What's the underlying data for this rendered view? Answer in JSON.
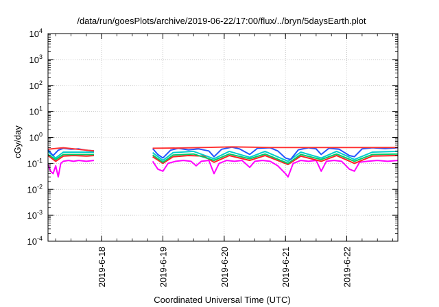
{
  "chart_data": {
    "type": "line",
    "title": "/data/run/goesPlots/archive/2019-06-22/17:00/flux/../bryn/5daysEarth.plot",
    "xlabel": "Coordinated Universal Time (UTC)",
    "ylabel": "cGy/day",
    "yscale": "log",
    "ylim": [
      0.0001,
      10000
    ],
    "y_ticks": [
      {
        "value": 0.0001,
        "base": "10",
        "exp": "-4"
      },
      {
        "value": 0.001,
        "base": "10",
        "exp": "-3"
      },
      {
        "value": 0.01,
        "base": "10",
        "exp": "-2"
      },
      {
        "value": 0.1,
        "base": "10",
        "exp": "-1"
      },
      {
        "value": 1,
        "base": "10",
        "exp": "0"
      },
      {
        "value": 10,
        "base": "10",
        "exp": "1"
      },
      {
        "value": 100,
        "base": "10",
        "exp": "2"
      },
      {
        "value": 1000,
        "base": "10",
        "exp": "3"
      },
      {
        "value": 10000,
        "base": "10",
        "exp": "4"
      }
    ],
    "xlim": [
      "2019-06-17 03:00",
      "2019-06-22 20:00"
    ],
    "x_ticks": [
      {
        "value": "2019-06-18 00:00",
        "label": "2019-6-18"
      },
      {
        "value": "2019-06-19 00:00",
        "label": "2019-6-19"
      },
      {
        "value": "2019-06-20 00:00",
        "label": "2019-6-20"
      },
      {
        "value": "2019-06-21 00:00",
        "label": "2019-6-21"
      },
      {
        "value": "2019-06-22 00:00",
        "label": "2019-6-22"
      }
    ],
    "grid": true,
    "gap": [
      "2019-06-17 21:00",
      "2019-06-18 20:00"
    ],
    "series": [
      {
        "color": "#ff00ff",
        "values_before_gap": [
          [
            "2019-06-17 03:00",
            0.09
          ],
          [
            "2019-06-17 04:00",
            0.05
          ],
          [
            "2019-06-17 05:00",
            0.04
          ],
          [
            "2019-06-17 06:00",
            0.08
          ],
          [
            "2019-06-17 07:00",
            0.03
          ],
          [
            "2019-06-17 08:00",
            0.1
          ],
          [
            "2019-06-17 09:00",
            0.12
          ],
          [
            "2019-06-17 11:00",
            0.13
          ],
          [
            "2019-06-17 13:00",
            0.12
          ],
          [
            "2019-06-17 15:00",
            0.13
          ],
          [
            "2019-06-17 18:00",
            0.12
          ],
          [
            "2019-06-17 21:00",
            0.13
          ]
        ],
        "values_after_gap": [
          [
            "2019-06-18 20:00",
            0.12
          ],
          [
            "2019-06-18 22:00",
            0.06
          ],
          [
            "2019-06-19 00:00",
            0.05
          ],
          [
            "2019-06-19 02:00",
            0.1
          ],
          [
            "2019-06-19 05:00",
            0.12
          ],
          [
            "2019-06-19 08:00",
            0.13
          ],
          [
            "2019-06-19 11:00",
            0.12
          ],
          [
            "2019-06-19 13:00",
            0.08
          ],
          [
            "2019-06-19 15:00",
            0.12
          ],
          [
            "2019-06-19 18:00",
            0.13
          ],
          [
            "2019-06-19 20:00",
            0.04
          ],
          [
            "2019-06-19 22:00",
            0.1
          ],
          [
            "2019-06-20 01:00",
            0.13
          ],
          [
            "2019-06-20 04:00",
            0.12
          ],
          [
            "2019-06-20 07:00",
            0.13
          ],
          [
            "2019-06-20 10:00",
            0.07
          ],
          [
            "2019-06-20 12:00",
            0.12
          ],
          [
            "2019-06-20 15:00",
            0.13
          ],
          [
            "2019-06-20 18:00",
            0.12
          ],
          [
            "2019-06-20 21:00",
            0.08
          ],
          [
            "2019-06-21 00:00",
            0.04
          ],
          [
            "2019-06-21 01:00",
            0.03
          ],
          [
            "2019-06-21 03:00",
            0.1
          ],
          [
            "2019-06-21 06:00",
            0.13
          ],
          [
            "2019-06-21 09:00",
            0.12
          ],
          [
            "2019-06-21 12:00",
            0.13
          ],
          [
            "2019-06-21 14:00",
            0.05
          ],
          [
            "2019-06-21 16:00",
            0.12
          ],
          [
            "2019-06-21 19:00",
            0.13
          ],
          [
            "2019-06-21 22:00",
            0.12
          ],
          [
            "2019-06-22 01:00",
            0.06
          ],
          [
            "2019-06-22 03:00",
            0.05
          ],
          [
            "2019-06-22 05:00",
            0.11
          ],
          [
            "2019-06-22 08:00",
            0.12
          ],
          [
            "2019-06-22 12:00",
            0.13
          ],
          [
            "2019-06-22 16:00",
            0.12
          ],
          [
            "2019-06-22 20:00",
            0.13
          ]
        ]
      },
      {
        "color": "#ff2222",
        "values_before_gap": [
          [
            "2019-06-17 03:00",
            0.2
          ],
          [
            "2019-06-17 06:00",
            0.12
          ],
          [
            "2019-06-17 09:00",
            0.19
          ],
          [
            "2019-06-17 13:00",
            0.2
          ],
          [
            "2019-06-17 18:00",
            0.19
          ],
          [
            "2019-06-17 21:00",
            0.2
          ]
        ],
        "values_after_gap": [
          [
            "2019-06-18 20:00",
            0.18
          ],
          [
            "2019-06-19 00:00",
            0.1
          ],
          [
            "2019-06-19 04:00",
            0.18
          ],
          [
            "2019-06-19 10:00",
            0.2
          ],
          [
            "2019-06-19 16:00",
            0.19
          ],
          [
            "2019-06-19 20:00",
            0.11
          ],
          [
            "2019-06-20 02:00",
            0.2
          ],
          [
            "2019-06-20 10:00",
            0.13
          ],
          [
            "2019-06-20 16:00",
            0.2
          ],
          [
            "2019-06-21 01:00",
            0.09
          ],
          [
            "2019-06-21 06:00",
            0.19
          ],
          [
            "2019-06-21 14:00",
            0.12
          ],
          [
            "2019-06-21 20:00",
            0.2
          ],
          [
            "2019-06-22 03:00",
            0.1
          ],
          [
            "2019-06-22 10:00",
            0.19
          ],
          [
            "2019-06-22 20:00",
            0.2
          ]
        ]
      },
      {
        "color": "#00cc66",
        "values_before_gap": [
          [
            "2019-06-17 03:00",
            0.22
          ],
          [
            "2019-06-17 06:00",
            0.14
          ],
          [
            "2019-06-17 09:00",
            0.22
          ],
          [
            "2019-06-17 21:00",
            0.22
          ]
        ],
        "values_after_gap": [
          [
            "2019-06-18 20:00",
            0.21
          ],
          [
            "2019-06-19 00:00",
            0.11
          ],
          [
            "2019-06-19 04:00",
            0.21
          ],
          [
            "2019-06-19 12:00",
            0.23
          ],
          [
            "2019-06-19 20:00",
            0.13
          ],
          [
            "2019-06-20 02:00",
            0.23
          ],
          [
            "2019-06-20 10:00",
            0.15
          ],
          [
            "2019-06-20 16:00",
            0.23
          ],
          [
            "2019-06-21 01:00",
            0.1
          ],
          [
            "2019-06-21 06:00",
            0.22
          ],
          [
            "2019-06-21 14:00",
            0.14
          ],
          [
            "2019-06-21 20:00",
            0.23
          ],
          [
            "2019-06-22 03:00",
            0.12
          ],
          [
            "2019-06-22 10:00",
            0.22
          ],
          [
            "2019-06-22 20:00",
            0.23
          ]
        ]
      },
      {
        "color": "#00cccc",
        "values_before_gap": [
          [
            "2019-06-17 03:00",
            0.28
          ],
          [
            "2019-06-17 06:00",
            0.16
          ],
          [
            "2019-06-17 09:00",
            0.27
          ],
          [
            "2019-06-17 21:00",
            0.27
          ]
        ],
        "values_after_gap": [
          [
            "2019-06-18 20:00",
            0.26
          ],
          [
            "2019-06-19 00:00",
            0.13
          ],
          [
            "2019-06-19 04:00",
            0.26
          ],
          [
            "2019-06-19 12:00",
            0.29
          ],
          [
            "2019-06-19 20:00",
            0.15
          ],
          [
            "2019-06-20 02:00",
            0.29
          ],
          [
            "2019-06-20 10:00",
            0.17
          ],
          [
            "2019-06-20 16:00",
            0.29
          ],
          [
            "2019-06-21 01:00",
            0.12
          ],
          [
            "2019-06-21 06:00",
            0.27
          ],
          [
            "2019-06-21 14:00",
            0.16
          ],
          [
            "2019-06-21 20:00",
            0.29
          ],
          [
            "2019-06-22 03:00",
            0.14
          ],
          [
            "2019-06-22 10:00",
            0.27
          ],
          [
            "2019-06-22 20:00",
            0.29
          ]
        ]
      },
      {
        "color": "#2255ff",
        "values_before_gap": [
          [
            "2019-06-17 03:00",
            0.33
          ],
          [
            "2019-06-17 05:00",
            0.2
          ],
          [
            "2019-06-17 07:00",
            0.32
          ],
          [
            "2019-06-17 09:00",
            0.38
          ],
          [
            "2019-06-17 12:00",
            0.35
          ],
          [
            "2019-06-17 15:00",
            0.36
          ],
          [
            "2019-06-17 18:00",
            0.32
          ],
          [
            "2019-06-17 21:00",
            0.3
          ]
        ],
        "values_after_gap": [
          [
            "2019-06-18 20:00",
            0.37
          ],
          [
            "2019-06-18 22:00",
            0.22
          ],
          [
            "2019-06-19 00:00",
            0.16
          ],
          [
            "2019-06-19 03:00",
            0.32
          ],
          [
            "2019-06-19 06:00",
            0.38
          ],
          [
            "2019-06-19 10:00",
            0.33
          ],
          [
            "2019-06-19 14:00",
            0.36
          ],
          [
            "2019-06-19 18:00",
            0.3
          ],
          [
            "2019-06-19 20:00",
            0.18
          ],
          [
            "2019-06-19 23:00",
            0.35
          ],
          [
            "2019-06-20 03:00",
            0.42
          ],
          [
            "2019-06-20 06:00",
            0.36
          ],
          [
            "2019-06-20 10:00",
            0.22
          ],
          [
            "2019-06-20 13:00",
            0.38
          ],
          [
            "2019-06-20 18:00",
            0.4
          ],
          [
            "2019-06-20 21:00",
            0.3
          ],
          [
            "2019-06-21 00:00",
            0.16
          ],
          [
            "2019-06-21 02:00",
            0.14
          ],
          [
            "2019-06-21 05:00",
            0.33
          ],
          [
            "2019-06-21 09:00",
            0.4
          ],
          [
            "2019-06-21 12:00",
            0.36
          ],
          [
            "2019-06-21 14:00",
            0.22
          ],
          [
            "2019-06-21 17:00",
            0.38
          ],
          [
            "2019-06-21 21:00",
            0.35
          ],
          [
            "2019-06-22 01:00",
            0.2
          ],
          [
            "2019-06-22 03:00",
            0.18
          ],
          [
            "2019-06-22 06:00",
            0.36
          ],
          [
            "2019-06-22 10:00",
            0.4
          ],
          [
            "2019-06-22 15:00",
            0.37
          ],
          [
            "2019-06-22 20:00",
            0.4
          ]
        ]
      },
      {
        "color": "#ff3333",
        "values_before_gap": [
          [
            "2019-06-17 03:00",
            0.35
          ],
          [
            "2019-06-17 09:00",
            0.4
          ],
          [
            "2019-06-17 21:00",
            0.3
          ]
        ],
        "values_after_gap": [
          [
            "2019-06-18 20:00",
            0.38
          ],
          [
            "2019-06-19 06:00",
            0.39
          ],
          [
            "2019-06-20 03:00",
            0.43
          ],
          [
            "2019-06-20 18:00",
            0.41
          ],
          [
            "2019-06-21 09:00",
            0.41
          ],
          [
            "2019-06-22 10:00",
            0.41
          ],
          [
            "2019-06-22 20:00",
            0.41
          ]
        ]
      }
    ]
  }
}
